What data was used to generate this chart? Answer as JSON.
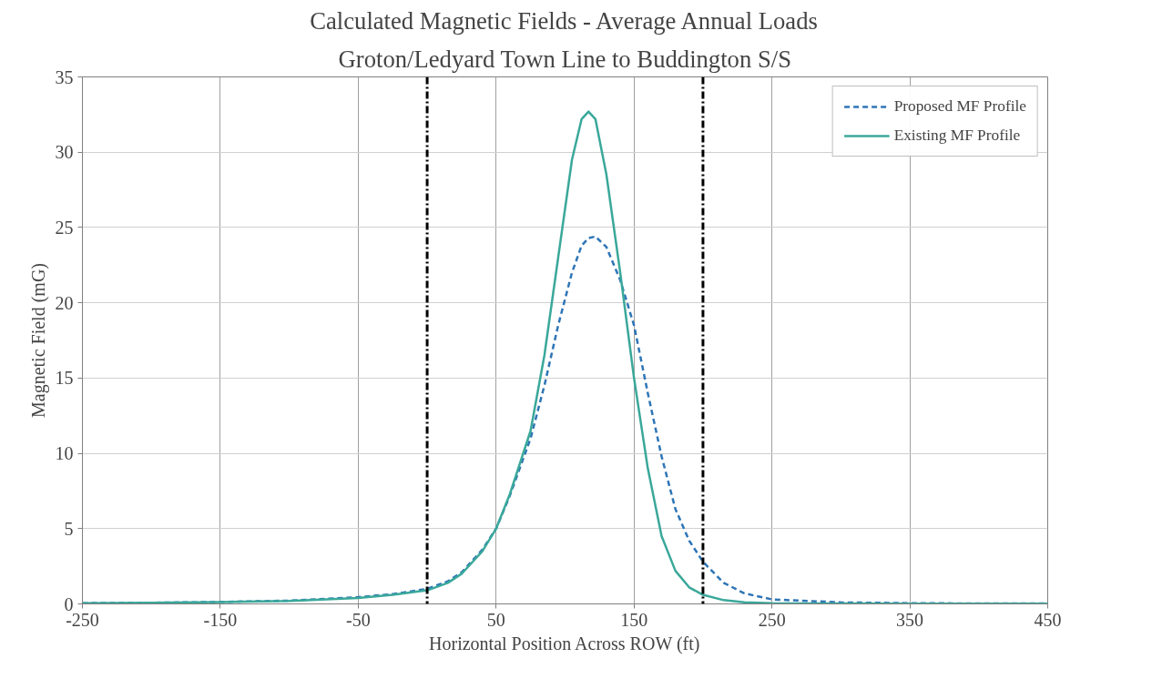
{
  "chart_data": {
    "type": "line",
    "title": "Calculated Magnetic Fields - Average Annual Loads",
    "subtitle": "Groton/Ledyard Town Line to Buddington S/S",
    "xlabel": "Horizontal Position Across ROW (ft)",
    "ylabel": "Magnetic Field (mG)",
    "x": [
      -250,
      -200,
      -150,
      -100,
      -50,
      -25,
      0,
      15,
      25,
      40,
      50,
      60,
      75,
      85,
      95,
      105,
      112,
      117,
      122,
      130,
      140,
      150,
      160,
      170,
      180,
      190,
      200,
      215,
      230,
      250,
      300,
      350,
      400,
      450
    ],
    "series": [
      {
        "name": "Proposed MF Profile",
        "color": "#2e75b6",
        "line_style": "dashed",
        "values": [
          0.05,
          0.08,
          0.13,
          0.22,
          0.45,
          0.65,
          1.0,
          1.5,
          2.1,
          3.6,
          5,
          7.2,
          11,
          14.5,
          18.5,
          22,
          23.8,
          24.3,
          24.4,
          23.7,
          21.5,
          18.5,
          14,
          9.8,
          6.3,
          4.2,
          2.8,
          1.4,
          0.7,
          0.3,
          0.1,
          0.05,
          0.03,
          0.03
        ]
      },
      {
        "name": "Existing MF Profile",
        "color": "#3aa89a",
        "line_style": "solid",
        "values": [
          0.05,
          0.08,
          0.12,
          0.2,
          0.4,
          0.6,
          0.9,
          1.4,
          2,
          3.5,
          5,
          7.3,
          11.5,
          16.5,
          23,
          29.5,
          32.2,
          32.7,
          32.2,
          28.5,
          22,
          15,
          9,
          4.5,
          2.2,
          1.1,
          0.6,
          0.25,
          0.1,
          0.05,
          0.03,
          0.02,
          0.02,
          0.02
        ]
      }
    ],
    "xlim": [
      -250,
      450
    ],
    "xticks": [
      -250,
      -150,
      -50,
      50,
      150,
      250,
      350,
      450
    ],
    "ylim": [
      0,
      35
    ],
    "yticks": [
      0,
      5,
      10,
      15,
      20,
      25,
      30,
      35
    ],
    "ref_lines": [
      {
        "axis": "x",
        "value": 0,
        "label": null,
        "color": "#000000",
        "line_style": "dashdot"
      },
      {
        "axis": "x",
        "value": 200,
        "label": null,
        "color": "#000000",
        "line_style": "dashdot"
      }
    ],
    "grid": true,
    "legend": "top right"
  }
}
